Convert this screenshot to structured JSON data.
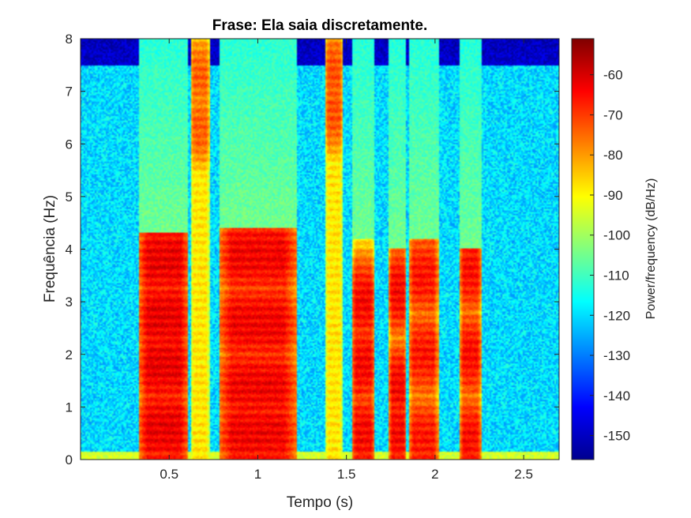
{
  "chart_data": {
    "type": "heatmap",
    "subtype": "spectrogram",
    "title": "Frase: Ela saia discretamente.",
    "xlabel": "Tempo (s)",
    "ylabel": "Frequência (Hz)",
    "xlim": [
      0,
      2.7
    ],
    "ylim": [
      0,
      8
    ],
    "xticks": [
      0.5,
      1,
      1.5,
      2,
      2.5
    ],
    "xtick_labels": [
      "0.5",
      "1",
      "1.5",
      "2",
      "2.5"
    ],
    "yticks": [
      0,
      1,
      2,
      3,
      4,
      5,
      6,
      7,
      8
    ],
    "ytick_labels": [
      "0",
      "1",
      "2",
      "3",
      "4",
      "5",
      "6",
      "7",
      "8"
    ],
    "colormap": "jet",
    "colorbar": {
      "label": "Power/frequency (dB/Hz)",
      "range": [
        -156,
        -51
      ],
      "ticks": [
        -60,
        -70,
        -80,
        -90,
        -100,
        -110,
        -120,
        -130,
        -140,
        -150
      ],
      "tick_labels": [
        "-60",
        "-70",
        "-80",
        "-90",
        "-100",
        "-110",
        "-120",
        "-130",
        "-140",
        "-150"
      ]
    },
    "background_level_db": -120,
    "high_band_level_db": -148,
    "segments": [
      {
        "t0": 0.33,
        "t1": 0.61,
        "fmax": 4.3,
        "peak_db": -62,
        "formants": [
          0.6,
          1.8,
          2.7,
          3.8
        ]
      },
      {
        "t0": 0.62,
        "t1": 0.73,
        "fmax": 8.0,
        "peak_db": -74,
        "formants": [
          6.3,
          7.3
        ]
      },
      {
        "t0": 0.78,
        "t1": 1.22,
        "fmax": 4.4,
        "peak_db": -63,
        "formants": [
          0.5,
          1.4,
          2.6,
          3.9
        ]
      },
      {
        "t0": 1.38,
        "t1": 1.48,
        "fmax": 8.0,
        "peak_db": -72,
        "formants": [
          6.6,
          7.4
        ]
      },
      {
        "t0": 1.53,
        "t1": 1.66,
        "fmax": 4.2,
        "peak_db": -64,
        "formants": [
          0.5,
          1.8,
          3.0
        ]
      },
      {
        "t0": 1.74,
        "t1": 1.84,
        "fmax": 4.0,
        "peak_db": -64,
        "formants": [
          0.5,
          1.4,
          3.2
        ]
      },
      {
        "t0": 1.85,
        "t1": 2.02,
        "fmax": 4.2,
        "peak_db": -66,
        "formants": [
          0.4,
          2.0,
          3.5
        ]
      },
      {
        "t0": 2.14,
        "t1": 2.26,
        "fmax": 4.0,
        "peak_db": -65,
        "formants": [
          0.4,
          2.0,
          3.6
        ]
      }
    ]
  }
}
